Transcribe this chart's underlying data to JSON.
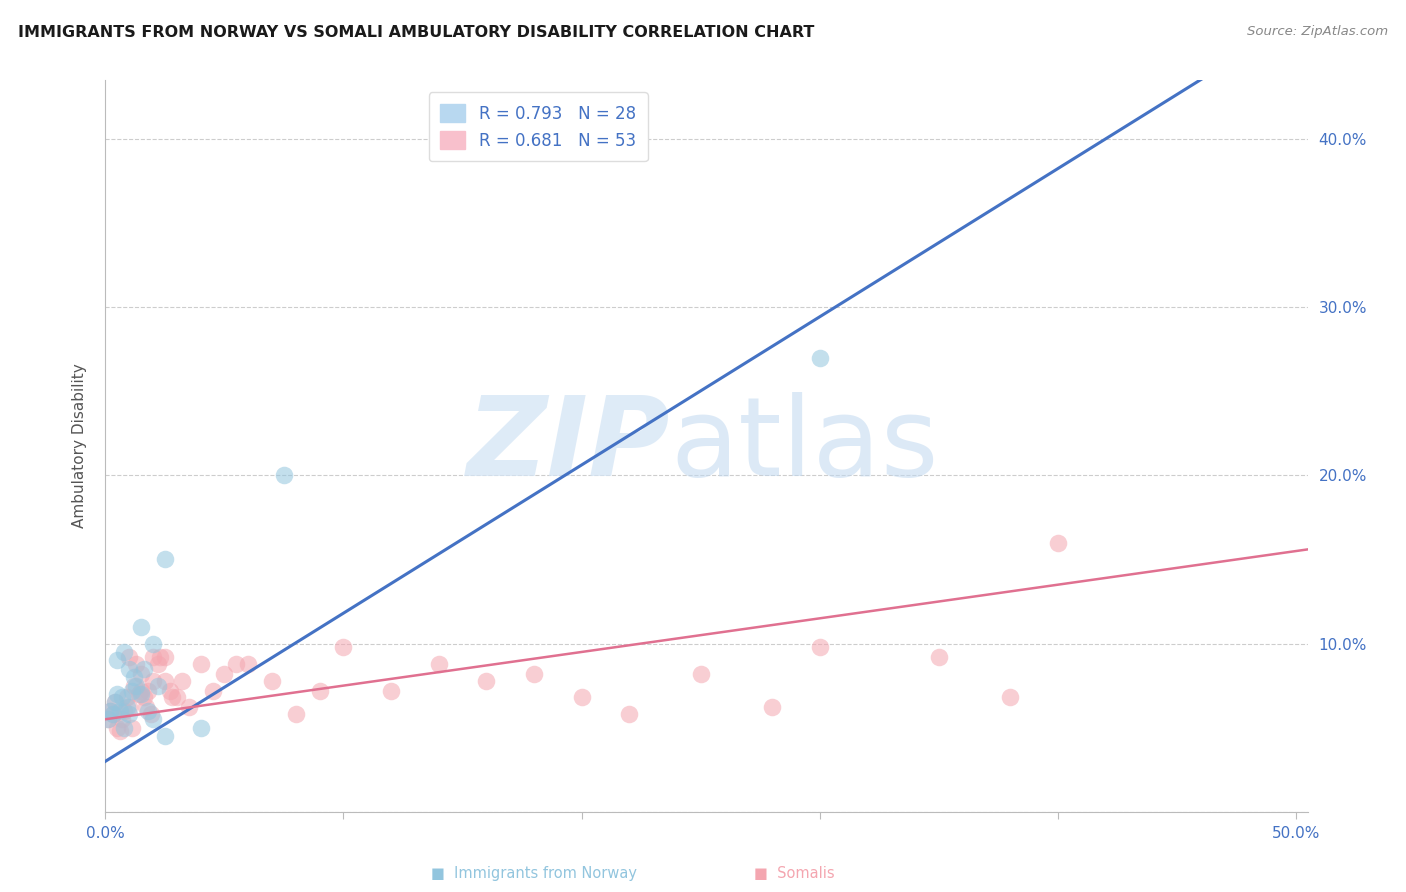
{
  "title": "IMMIGRANTS FROM NORWAY VS SOMALI AMBULATORY DISABILITY CORRELATION CHART",
  "source": "Source: ZipAtlas.com",
  "ylabel": "Ambulatory Disability",
  "xlim": [
    0,
    0.505
  ],
  "ylim": [
    0.0,
    0.435
  ],
  "norway_R": 0.793,
  "norway_N": 28,
  "somali_R": 0.681,
  "somali_N": 53,
  "norway_color": "#92c5de",
  "somali_color": "#f4a6b0",
  "norway_line_color": "#4472C4",
  "somali_line_color": "#e07090",
  "axis_label_color": "#4472C4",
  "norway_x": [
    0.001,
    0.002,
    0.003,
    0.004,
    0.005,
    0.006,
    0.007,
    0.008,
    0.009,
    0.01,
    0.011,
    0.012,
    0.013,
    0.015,
    0.016,
    0.018,
    0.02,
    0.022,
    0.025,
    0.005,
    0.008,
    0.01,
    0.015,
    0.02,
    0.025,
    0.04,
    0.075,
    0.3
  ],
  "norway_y": [
    0.055,
    0.06,
    0.058,
    0.065,
    0.07,
    0.06,
    0.068,
    0.05,
    0.062,
    0.058,
    0.072,
    0.08,
    0.075,
    0.07,
    0.085,
    0.06,
    0.055,
    0.075,
    0.045,
    0.09,
    0.095,
    0.085,
    0.11,
    0.1,
    0.15,
    0.05,
    0.2,
    0.27
  ],
  "somali_x": [
    0.001,
    0.002,
    0.003,
    0.004,
    0.005,
    0.006,
    0.007,
    0.008,
    0.009,
    0.01,
    0.011,
    0.012,
    0.013,
    0.014,
    0.015,
    0.016,
    0.017,
    0.018,
    0.019,
    0.02,
    0.022,
    0.023,
    0.025,
    0.027,
    0.028,
    0.03,
    0.032,
    0.035,
    0.04,
    0.045,
    0.05,
    0.055,
    0.06,
    0.07,
    0.08,
    0.09,
    0.1,
    0.12,
    0.14,
    0.16,
    0.18,
    0.2,
    0.22,
    0.25,
    0.28,
    0.3,
    0.35,
    0.38,
    0.4,
    0.01,
    0.015,
    0.02,
    0.025
  ],
  "somali_y": [
    0.055,
    0.06,
    0.058,
    0.065,
    0.05,
    0.048,
    0.055,
    0.06,
    0.068,
    0.062,
    0.05,
    0.075,
    0.088,
    0.07,
    0.082,
    0.068,
    0.062,
    0.072,
    0.058,
    0.078,
    0.088,
    0.092,
    0.078,
    0.072,
    0.068,
    0.068,
    0.078,
    0.062,
    0.088,
    0.072,
    0.082,
    0.088,
    0.088,
    0.078,
    0.058,
    0.072,
    0.098,
    0.072,
    0.088,
    0.078,
    0.082,
    0.068,
    0.058,
    0.082,
    0.062,
    0.098,
    0.092,
    0.068,
    0.16,
    0.092,
    0.072,
    0.092,
    0.092
  ]
}
